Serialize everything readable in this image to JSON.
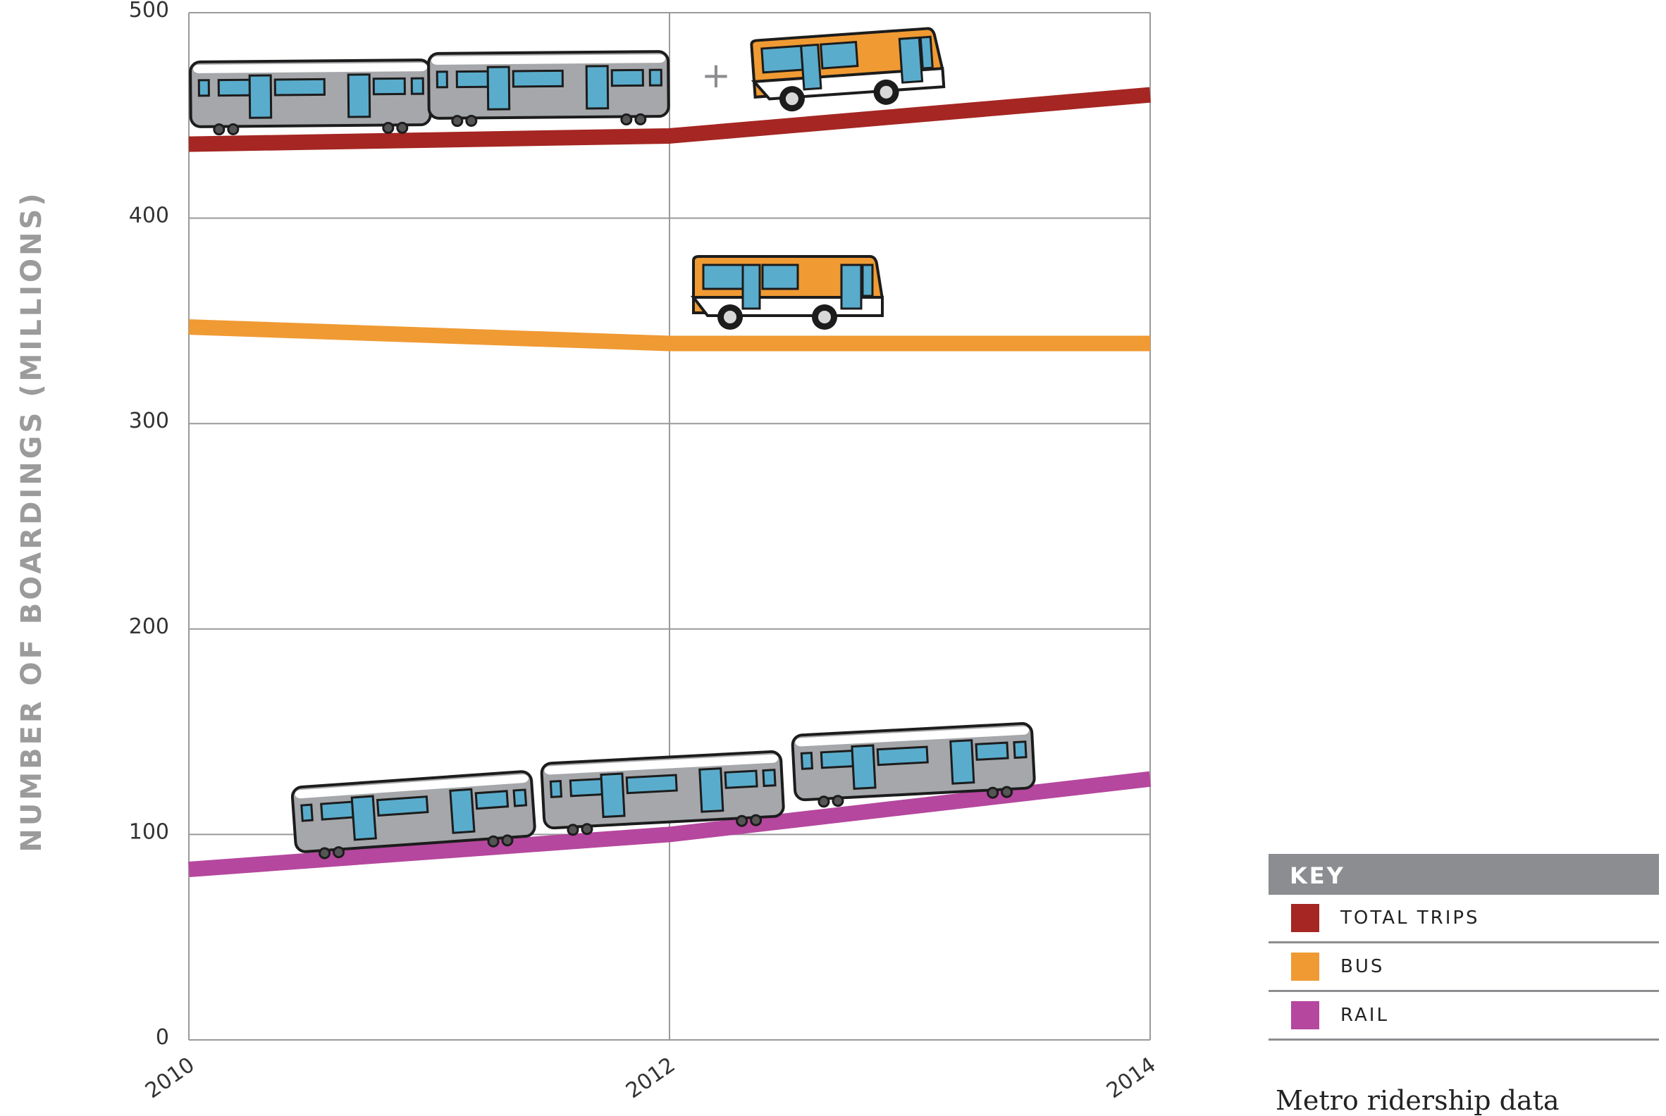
{
  "chart_data": {
    "type": "line",
    "x": [
      2010,
      2012,
      2014
    ],
    "xlim": [
      2010,
      2014
    ],
    "ylim": [
      0,
      500
    ],
    "y_ticks": [
      0,
      100,
      200,
      300,
      400,
      500
    ],
    "x_ticks": [
      2010,
      2012,
      2014
    ],
    "xlabel": "",
    "ylabel": "NUMBER OF BOARDINGS (MILLIONS)",
    "grid": true,
    "series": [
      {
        "name": "TOTAL TRIPS",
        "color": "#a52622",
        "values": [
          436,
          440,
          460
        ]
      },
      {
        "name": "BUS",
        "color": "#f09a33",
        "values": [
          347,
          339,
          339
        ]
      },
      {
        "name": "RAIL",
        "color": "#b5479e",
        "values": [
          83,
          100,
          127
        ]
      }
    ],
    "legend_position": "bottom-right"
  },
  "key": {
    "title": "KEY",
    "items": [
      {
        "label": "TOTAL TRIPS",
        "color": "#a52622"
      },
      {
        "label": "BUS",
        "color": "#f09a33"
      },
      {
        "label": "RAIL",
        "color": "#b5479e"
      }
    ]
  },
  "illustrations": {
    "plus_sign": "+",
    "icons": [
      "train-icon",
      "bus-icon"
    ]
  },
  "caption": "Metro ridership data"
}
